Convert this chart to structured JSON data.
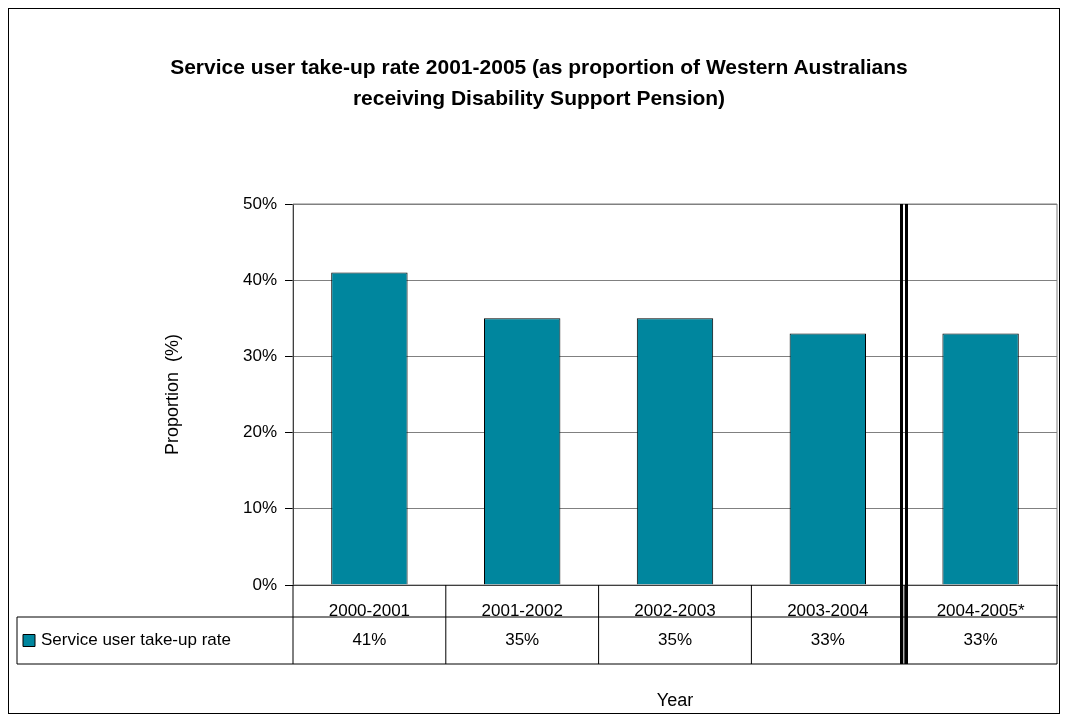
{
  "chart_data": {
    "type": "bar",
    "title": "Service user take-up rate 2001-2005 (as proportion of Western Australians receiving Disability Support Pension)",
    "xlabel": "Year",
    "ylabel": "Proportion  (%)",
    "categories": [
      "2000-2001",
      "2001-2002",
      "2002-2003",
      "2003-2004",
      "2004-2005*"
    ],
    "series": [
      {
        "name": "Service user take-up rate",
        "color": "#00869e",
        "values": [
          41,
          35,
          35,
          33,
          33
        ],
        "value_labels": [
          "41%",
          "35%",
          "35%",
          "33%",
          "33%"
        ]
      }
    ],
    "ylim": [
      0,
      50
    ],
    "yticks": [
      {
        "value": 0,
        "label": "0%"
      },
      {
        "value": 10,
        "label": "10%"
      },
      {
        "value": 20,
        "label": "20%"
      },
      {
        "value": 30,
        "label": "30%"
      },
      {
        "value": 40,
        "label": "40%"
      },
      {
        "value": 50,
        "label": "50%"
      }
    ],
    "grid": "y",
    "legend": "bottom left"
  }
}
